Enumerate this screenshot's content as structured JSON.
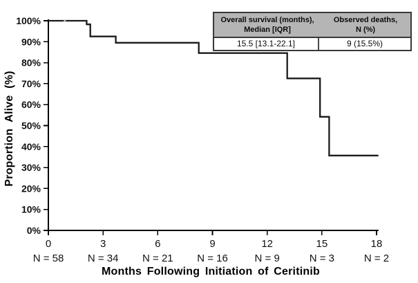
{
  "chart_data": {
    "type": "line",
    "subtype": "kaplan-meier-step",
    "title": "",
    "xlabel": "Months Following Initiation of Ceritinib",
    "ylabel": "Proportion Alive (%)",
    "xlim": [
      0,
      18
    ],
    "ylim": [
      0,
      100
    ],
    "grid": false,
    "legend_position": "none",
    "x_ticks": [
      0,
      3,
      6,
      9,
      12,
      15,
      18
    ],
    "x_tick_labels": [
      "0",
      "3",
      "6",
      "9",
      "12",
      "15",
      "18"
    ],
    "y_ticks": [
      0,
      10,
      20,
      30,
      40,
      50,
      60,
      70,
      80,
      90,
      100
    ],
    "y_tick_labels": [
      "0%",
      "10%",
      "20%",
      "30%",
      "40%",
      "50%",
      "60%",
      "70%",
      "80%",
      "90%",
      "100%"
    ],
    "series": [
      {
        "name": "Overall survival",
        "color": "#1a1a1a",
        "step_points": [
          [
            0,
            100
          ],
          [
            2.1,
            100
          ],
          [
            2.1,
            98.3
          ],
          [
            2.3,
            98.3
          ],
          [
            2.3,
            92.5
          ],
          [
            3.7,
            92.5
          ],
          [
            3.7,
            89.5
          ],
          [
            8.25,
            89.5
          ],
          [
            8.25,
            84.6
          ],
          [
            13.1,
            84.6
          ],
          [
            13.1,
            72.5
          ],
          [
            14.9,
            72.5
          ],
          [
            14.9,
            54.2
          ],
          [
            15.4,
            54.2
          ],
          [
            15.4,
            35.7
          ],
          [
            18.1,
            35.7
          ]
        ],
        "censor_marks": [
          [
            0.9,
            100
          ]
        ]
      }
    ],
    "at_risk": {
      "months": [
        0,
        3,
        6,
        9,
        12,
        15,
        18
      ],
      "labels": [
        "N = 58",
        "N = 34",
        "N = 21",
        "N = 16",
        "N = 9",
        "N = 3",
        "N = 2"
      ]
    }
  },
  "summary_table": {
    "header_bg": "#b5b5b5",
    "border_color": "#383838",
    "columns": [
      {
        "line1": "Overall survival (months),",
        "line2": "Median [IQR]",
        "value": "15.5 [13.1-22.1]"
      },
      {
        "line1": "Observed deaths,",
        "line2": "N (%)",
        "value": "9 (15.5%)"
      }
    ]
  },
  "colors": {
    "curve": "#1a1a1a",
    "axis": "#000000",
    "censor": "#b0b0b0",
    "background": "#ffffff"
  }
}
